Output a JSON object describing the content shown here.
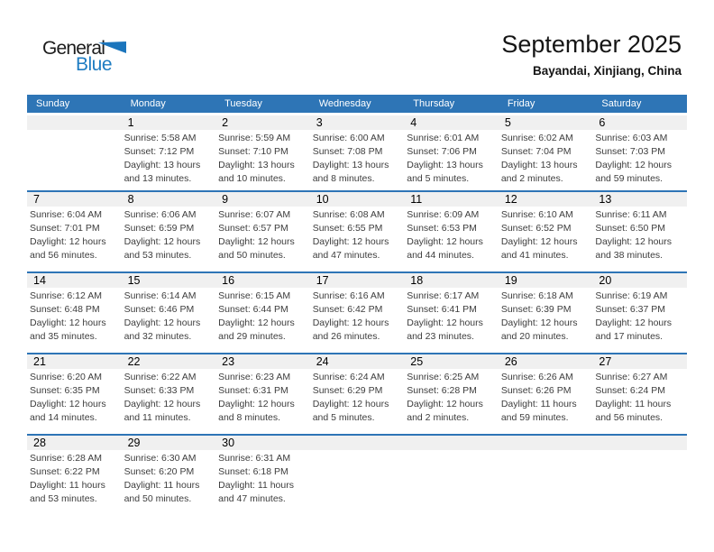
{
  "logo": {
    "general": "General",
    "blue": "Blue"
  },
  "header": {
    "title": "September 2025",
    "location": "Bayandai, Xinjiang, China"
  },
  "weekdays": [
    "Sunday",
    "Monday",
    "Tuesday",
    "Wednesday",
    "Thursday",
    "Friday",
    "Saturday"
  ],
  "labels": {
    "sunrise": "Sunrise:",
    "sunset": "Sunset:",
    "daylight": "Daylight:"
  },
  "colors": {
    "header_blue": "#2E75B6",
    "row_band_gray": "#F0F0F0",
    "logo_blue": "#1E7CC2",
    "logo_triangle_blue": "#1B75BC",
    "detail_text": "#3D3D3D"
  },
  "weeks": [
    [
      null,
      {
        "day": "1",
        "sunrise": "5:58 AM",
        "sunset": "7:12 PM",
        "daylight": "13 hours and 13 minutes."
      },
      {
        "day": "2",
        "sunrise": "5:59 AM",
        "sunset": "7:10 PM",
        "daylight": "13 hours and 10 minutes."
      },
      {
        "day": "3",
        "sunrise": "6:00 AM",
        "sunset": "7:08 PM",
        "daylight": "13 hours and 8 minutes."
      },
      {
        "day": "4",
        "sunrise": "6:01 AM",
        "sunset": "7:06 PM",
        "daylight": "13 hours and 5 minutes."
      },
      {
        "day": "5",
        "sunrise": "6:02 AM",
        "sunset": "7:04 PM",
        "daylight": "13 hours and 2 minutes."
      },
      {
        "day": "6",
        "sunrise": "6:03 AM",
        "sunset": "7:03 PM",
        "daylight": "12 hours and 59 minutes."
      }
    ],
    [
      {
        "day": "7",
        "sunrise": "6:04 AM",
        "sunset": "7:01 PM",
        "daylight": "12 hours and 56 minutes."
      },
      {
        "day": "8",
        "sunrise": "6:06 AM",
        "sunset": "6:59 PM",
        "daylight": "12 hours and 53 minutes."
      },
      {
        "day": "9",
        "sunrise": "6:07 AM",
        "sunset": "6:57 PM",
        "daylight": "12 hours and 50 minutes."
      },
      {
        "day": "10",
        "sunrise": "6:08 AM",
        "sunset": "6:55 PM",
        "daylight": "12 hours and 47 minutes."
      },
      {
        "day": "11",
        "sunrise": "6:09 AM",
        "sunset": "6:53 PM",
        "daylight": "12 hours and 44 minutes."
      },
      {
        "day": "12",
        "sunrise": "6:10 AM",
        "sunset": "6:52 PM",
        "daylight": "12 hours and 41 minutes."
      },
      {
        "day": "13",
        "sunrise": "6:11 AM",
        "sunset": "6:50 PM",
        "daylight": "12 hours and 38 minutes."
      }
    ],
    [
      {
        "day": "14",
        "sunrise": "6:12 AM",
        "sunset": "6:48 PM",
        "daylight": "12 hours and 35 minutes."
      },
      {
        "day": "15",
        "sunrise": "6:14 AM",
        "sunset": "6:46 PM",
        "daylight": "12 hours and 32 minutes."
      },
      {
        "day": "16",
        "sunrise": "6:15 AM",
        "sunset": "6:44 PM",
        "daylight": "12 hours and 29 minutes."
      },
      {
        "day": "17",
        "sunrise": "6:16 AM",
        "sunset": "6:42 PM",
        "daylight": "12 hours and 26 minutes."
      },
      {
        "day": "18",
        "sunrise": "6:17 AM",
        "sunset": "6:41 PM",
        "daylight": "12 hours and 23 minutes."
      },
      {
        "day": "19",
        "sunrise": "6:18 AM",
        "sunset": "6:39 PM",
        "daylight": "12 hours and 20 minutes."
      },
      {
        "day": "20",
        "sunrise": "6:19 AM",
        "sunset": "6:37 PM",
        "daylight": "12 hours and 17 minutes."
      }
    ],
    [
      {
        "day": "21",
        "sunrise": "6:20 AM",
        "sunset": "6:35 PM",
        "daylight": "12 hours and 14 minutes."
      },
      {
        "day": "22",
        "sunrise": "6:22 AM",
        "sunset": "6:33 PM",
        "daylight": "12 hours and 11 minutes."
      },
      {
        "day": "23",
        "sunrise": "6:23 AM",
        "sunset": "6:31 PM",
        "daylight": "12 hours and 8 minutes."
      },
      {
        "day": "24",
        "sunrise": "6:24 AM",
        "sunset": "6:29 PM",
        "daylight": "12 hours and 5 minutes."
      },
      {
        "day": "25",
        "sunrise": "6:25 AM",
        "sunset": "6:28 PM",
        "daylight": "12 hours and 2 minutes."
      },
      {
        "day": "26",
        "sunrise": "6:26 AM",
        "sunset": "6:26 PM",
        "daylight": "11 hours and 59 minutes."
      },
      {
        "day": "27",
        "sunrise": "6:27 AM",
        "sunset": "6:24 PM",
        "daylight": "11 hours and 56 minutes."
      }
    ],
    [
      {
        "day": "28",
        "sunrise": "6:28 AM",
        "sunset": "6:22 PM",
        "daylight": "11 hours and 53 minutes."
      },
      {
        "day": "29",
        "sunrise": "6:30 AM",
        "sunset": "6:20 PM",
        "daylight": "11 hours and 50 minutes."
      },
      {
        "day": "30",
        "sunrise": "6:31 AM",
        "sunset": "6:18 PM",
        "daylight": "11 hours and 47 minutes."
      },
      null,
      null,
      null,
      null
    ]
  ]
}
